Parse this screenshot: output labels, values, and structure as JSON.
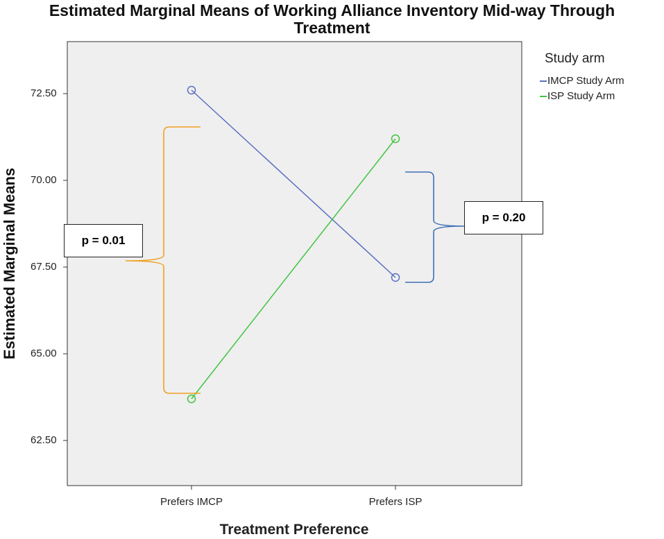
{
  "chart_data": {
    "type": "line",
    "title_lines": [
      "Estimated Marginal Means of Working Alliance Inventory Mid-way Through",
      "Treatment"
    ],
    "xlabel": "Treatment Preference",
    "ylabel": "Estimated Marginal Means",
    "categories": [
      "Prefers IMCP",
      "Prefers ISP"
    ],
    "ylim": [
      61.2,
      74.0
    ],
    "yticks": [
      62.5,
      65.0,
      67.5,
      70.0,
      72.5
    ],
    "ytick_labels": [
      "62.50",
      "65.00",
      "67.50",
      "70.00",
      "72.50"
    ],
    "legend_title": "Study arm",
    "series": [
      {
        "name": "IMCP Study Arm",
        "color": "#5a6fc4",
        "values": [
          72.6,
          67.2
        ]
      },
      {
        "name": "ISP Study Arm",
        "color": "#3fc43f",
        "values": [
          63.7,
          71.2
        ]
      }
    ],
    "annotations": [
      {
        "text": "p = 0.01",
        "color": "#f0a020"
      },
      {
        "text": "p = 0.20",
        "color": "#3f6fb5"
      }
    ],
    "grid": false,
    "legend_position": "right"
  }
}
